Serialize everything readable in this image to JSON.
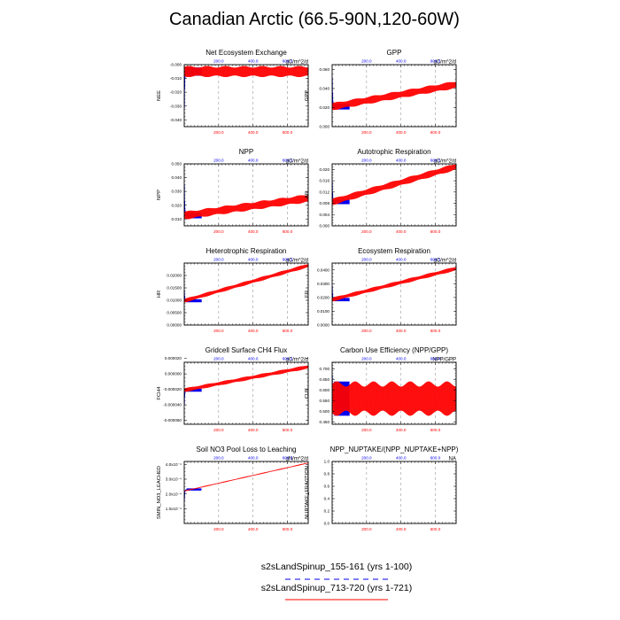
{
  "title": "Canadian Arctic (66.5-90N,120-60W)",
  "colors": {
    "series1": "#0000ee",
    "series2": "#ff0000",
    "axis": "#000000",
    "grid": "#999999"
  },
  "legend": {
    "items": [
      {
        "label": "s2sLandSpinup_155-161 (yrs 1-100)",
        "color": "#0000ee",
        "dashed": true
      },
      {
        "label": "s2sLandSpinup_713-720 (yrs 1-721)",
        "color": "#ff0000",
        "dashed": false
      }
    ]
  },
  "chart_data": [
    {
      "type": "line",
      "title": "Net Ecosystem Exchange",
      "units": "gC/m^2/d",
      "ylabel": "NEE",
      "xlim": [
        0,
        721
      ],
      "ylim": [
        -0.045,
        0.0
      ],
      "yticks": [
        -0.04,
        -0.03,
        -0.02,
        -0.01,
        -0.0
      ],
      "yticklabels": [
        "-0.040",
        "-0.030",
        "-0.020",
        "-0.010",
        "-0.000"
      ],
      "top_xticks": [
        "200.0",
        "400.0",
        "600.0"
      ],
      "bottom_xticks": [
        "200.0",
        "400.0",
        "600.0"
      ],
      "series": [
        {
          "name": "s2sLandSpinup_155-161",
          "years": [
            1,
            100
          ],
          "spike": [
            -0.043,
            -0.003
          ],
          "start": -0.02,
          "mean": -0.005,
          "amplitude": 0.003
        },
        {
          "name": "s2sLandSpinup_713-720",
          "years": [
            1,
            721
          ],
          "start": -0.005,
          "end": -0.005,
          "amplitude": 0.004
        }
      ]
    },
    {
      "type": "line",
      "title": "GPP",
      "units": "gC/m^2/d",
      "ylabel": "GPP",
      "xlim": [
        0,
        721
      ],
      "ylim": [
        0.0,
        0.065
      ],
      "yticks": [
        0.0,
        0.02,
        0.04,
        0.06
      ],
      "yticklabels": [
        "0.000",
        "0.020",
        "0.040",
        "0.060"
      ],
      "top_xticks": [
        "200.0",
        "400.0",
        "600.0"
      ],
      "bottom_xticks": [
        "200.0",
        "400.0",
        "600.0"
      ],
      "series": [
        {
          "name": "s2sLandSpinup_155-161",
          "years": [
            1,
            100
          ],
          "spike": [
            0.062,
            0.02
          ],
          "start": 0.04,
          "mean": 0.021,
          "amplitude": 0.003
        },
        {
          "name": "s2sLandSpinup_713-720",
          "years": [
            1,
            721
          ],
          "start": 0.021,
          "end": 0.044,
          "amplitude": 0.004
        }
      ]
    },
    {
      "type": "line",
      "title": "NPP",
      "units": "gC/m^2/d",
      "ylabel": "NPP",
      "xlim": [
        0,
        721
      ],
      "ylim": [
        0.005,
        0.05
      ],
      "yticks": [
        0.01,
        0.02,
        0.03,
        0.04,
        0.05
      ],
      "yticklabels": [
        "0.010",
        "0.020",
        "0.030",
        "0.040",
        "0.050"
      ],
      "top_xticks": [
        "200.0",
        "400.0",
        "600.0"
      ],
      "bottom_xticks": [
        "200.0",
        "400.0",
        "600.0"
      ],
      "series": [
        {
          "name": "s2sLandSpinup_155-161",
          "years": [
            1,
            100
          ],
          "spike": [
            0.044,
            0.012
          ],
          "start": 0.026,
          "mean": 0.0125,
          "amplitude": 0.002
        },
        {
          "name": "s2sLandSpinup_713-720",
          "years": [
            1,
            721
          ],
          "start": 0.0125,
          "end": 0.025,
          "amplitude": 0.003
        }
      ]
    },
    {
      "type": "line",
      "title": "Autotrophic Respiration",
      "units": "gC/m^2/d",
      "ylabel": "AR",
      "xlim": [
        0,
        721
      ],
      "ylim": [
        0.0,
        0.022
      ],
      "yticks": [
        0.0,
        0.004,
        0.008,
        0.012,
        0.016,
        0.02
      ],
      "yticklabels": [
        "0.000",
        "0.004",
        "0.008",
        "0.012",
        "0.016",
        "0.020"
      ],
      "top_xticks": [
        "200.0",
        "400.0",
        "600.0"
      ],
      "bottom_xticks": [
        "200.0",
        "400.0",
        "600.0"
      ],
      "series": [
        {
          "name": "s2sLandSpinup_155-161",
          "years": [
            1,
            100
          ],
          "spike": [
            0.017,
            0.0075
          ],
          "start": 0.013,
          "mean": 0.0085,
          "amplitude": 0.0008
        },
        {
          "name": "s2sLandSpinup_713-720",
          "years": [
            1,
            721
          ],
          "start": 0.0085,
          "end": 0.021,
          "amplitude": 0.0012
        }
      ]
    },
    {
      "type": "line",
      "title": "Heterotrophic Respiration",
      "units": "gC/m^2/d",
      "ylabel": "HR",
      "xlim": [
        0,
        721
      ],
      "ylim": [
        0.0,
        0.025
      ],
      "yticks": [
        0.0,
        0.005,
        0.01,
        0.015,
        0.02
      ],
      "yticklabels": [
        "0.00000",
        "0.00500",
        "0.01000",
        "0.01500",
        "0.02000"
      ],
      "top_xticks": [
        "200.0",
        "400.0",
        "600.0"
      ],
      "bottom_xticks": [
        "200.0",
        "400.0",
        "600.0"
      ],
      "series": [
        {
          "name": "s2sLandSpinup_155-161",
          "years": [
            1,
            100
          ],
          "spike": [
            0.016,
            0.0095
          ],
          "start": 0.012,
          "mean": 0.0098,
          "amplitude": 0.0006
        },
        {
          "name": "s2sLandSpinup_713-720",
          "years": [
            1,
            721
          ],
          "start": 0.0098,
          "end": 0.024,
          "amplitude": 0.0008
        }
      ]
    },
    {
      "type": "line",
      "title": "Ecosystem Respiration",
      "units": "gC/m^2/d",
      "ylabel": "ER",
      "xlim": [
        0,
        721
      ],
      "ylim": [
        0.0,
        0.045
      ],
      "yticks": [
        0.0,
        0.01,
        0.02,
        0.03,
        0.04
      ],
      "yticklabels": [
        "0.0000",
        "0.0100",
        "0.0200",
        "0.0300",
        "0.0400"
      ],
      "top_xticks": [
        "200.0",
        "400.0",
        "600.0"
      ],
      "bottom_xticks": [
        "200.0",
        "400.0",
        "600.0"
      ],
      "series": [
        {
          "name": "s2sLandSpinup_155-161",
          "years": [
            1,
            100
          ],
          "spike": [
            0.033,
            0.018
          ],
          "start": 0.024,
          "mean": 0.0185,
          "amplitude": 0.0012
        },
        {
          "name": "s2sLandSpinup_713-720",
          "years": [
            1,
            721
          ],
          "start": 0.0185,
          "end": 0.041,
          "amplitude": 0.0015
        }
      ]
    },
    {
      "type": "line",
      "title": "Gridcell Surface CH4 Flux",
      "units": "gC/m^2/d",
      "ylabel": "FCH4",
      "xlim": [
        0,
        721
      ],
      "ylim": [
        -6.5e-05,
        1.5e-05
      ],
      "yticks": [
        -6e-05,
        -4e-05,
        -2e-05,
        0.0,
        2e-05
      ],
      "yticklabels": [
        "-0.000060",
        "-0.000040",
        "-0.000020",
        "0.000000",
        "0.000020"
      ],
      "top_xticks": [
        "200.0",
        "400.0",
        "600.0"
      ],
      "bottom_xticks": [
        "200.0",
        "400.0",
        "600.0"
      ],
      "series": [
        {
          "name": "s2sLandSpinup_155-161",
          "years": [
            1,
            100
          ],
          "spike": [
            -4.8e-05,
            -2.1e-05
          ],
          "start": -3.2e-05,
          "mean": -2.1e-05,
          "amplitude": 2e-06
        },
        {
          "name": "s2sLandSpinup_713-720",
          "years": [
            1,
            721
          ],
          "start": -2.1e-05,
          "end": 9e-06,
          "amplitude": 2.5e-06
        }
      ]
    },
    {
      "type": "line",
      "title": "Carbon Use Efficiency (NPP/GPP)",
      "units": "NPP/GPP",
      "ylabel": "CUE",
      "xlim": [
        0,
        721
      ],
      "ylim": [
        0.44,
        0.73
      ],
      "yticks": [
        0.45,
        0.5,
        0.55,
        0.6,
        0.65,
        0.7
      ],
      "yticklabels": [
        "0.450",
        "0.500",
        "0.550",
        "0.600",
        "0.650",
        "0.700"
      ],
      "top_xticks": [
        "200.0",
        "400.0",
        "600.0"
      ],
      "bottom_xticks": [
        "200.0",
        "400.0",
        "600.0"
      ],
      "series": [
        {
          "name": "s2sLandSpinup_155-161",
          "years": [
            1,
            100
          ],
          "spike": [
            0.72,
            0.55
          ],
          "start": 0.62,
          "mean": 0.56,
          "amplitude": 0.08
        },
        {
          "name": "s2sLandSpinup_713-720",
          "years": [
            1,
            721
          ],
          "start": 0.56,
          "end": 0.56,
          "amplitude": 0.08
        }
      ]
    },
    {
      "type": "line",
      "title": "Soil NO3 Pool Loss to Leaching",
      "units": "gN/m^2/d",
      "ylabel": "SMIN_NO3_LEACHED",
      "xlim": [
        0,
        721
      ],
      "ylim": [
        0.0,
        0.00042
      ],
      "yticks": [
        0.0001,
        0.0002,
        0.0003,
        0.0004
      ],
      "yticklabels": [
        "1.0x10⁻⁴",
        "2.0x10⁻⁴",
        "3.0x10⁻⁴",
        "4.0x10⁻⁴"
      ],
      "top_xticks": [
        "200.0",
        "400.0",
        "600.0"
      ],
      "bottom_xticks": [
        "200.0",
        "400.0",
        "600.0"
      ],
      "series": [
        {
          "name": "s2sLandSpinup_155-161",
          "years": [
            1,
            100
          ],
          "spike": [
            0.00015,
            0.00014
          ],
          "start": 0.00015,
          "mean": 0.00023,
          "amplitude": 2e-06
        },
        {
          "name": "s2sLandSpinup_713-720",
          "years": [
            1,
            721
          ],
          "start": 0.00022,
          "end": 0.00041,
          "amplitude": 3e-06
        }
      ]
    },
    {
      "type": "line",
      "title": "NPP_NUPTAKE/(NPP_NUPTAKE+NPP)",
      "units": "NA",
      "ylabel": "NUPTAKE_FRACTION",
      "xlim": [
        0,
        721
      ],
      "ylim": [
        0.0,
        1.0
      ],
      "yticks": [
        0.0,
        0.2,
        0.4,
        0.6,
        0.8,
        1.0
      ],
      "yticklabels": [
        "0.0",
        "0.2",
        "0.4",
        "0.6",
        "0.8",
        "1.0"
      ],
      "top_xticks": [
        "200.0",
        "400.0",
        "600.0"
      ],
      "bottom_xticks": [
        "200.0",
        "400.0",
        "600.0"
      ],
      "series": []
    }
  ]
}
